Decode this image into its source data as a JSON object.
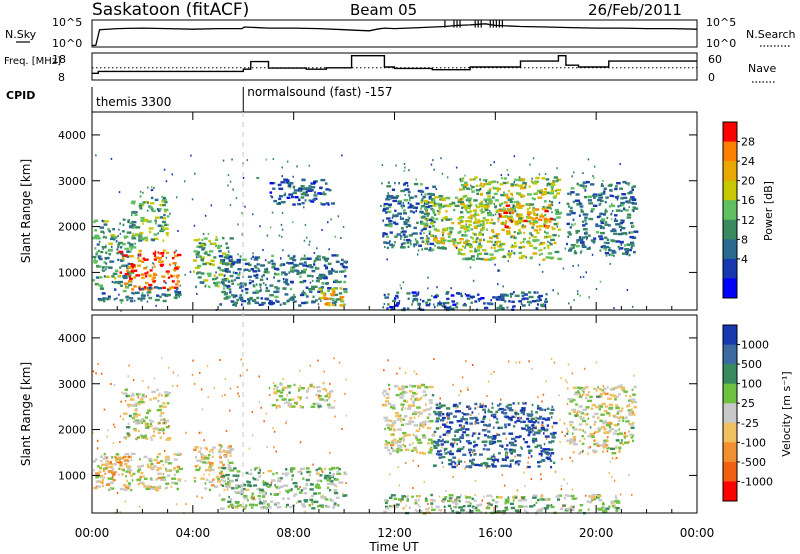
{
  "header": {
    "station": "Saskatoon (fitACF)",
    "beam": "Beam 05",
    "date": "26/Feb/2011"
  },
  "chart_data": [
    {
      "type": "line",
      "panel": "nsky",
      "ylabel": "N.Sky",
      "right_label": "N.Search",
      "y_tick_labels": [
        "10^5",
        "10^0"
      ],
      "right_tick_labels": [
        "10^5",
        "10^0"
      ],
      "y_scale": "log",
      "xlim": [
        0,
        24
      ],
      "ylim": [
        0,
        5
      ],
      "series": [
        {
          "style": "solid",
          "x": [
            0,
            0.15,
            0.3,
            1,
            2,
            3,
            4,
            5,
            5.95,
            6.05,
            7,
            8,
            9,
            10,
            10.5,
            11,
            11.3,
            11.6,
            12,
            13,
            14,
            14.5,
            15,
            15.3,
            15.6,
            16,
            17,
            18,
            19,
            20,
            21,
            22,
            23,
            24
          ],
          "y": [
            0.3,
            0.3,
            3.2,
            3.4,
            3.5,
            3.4,
            3.3,
            3.4,
            3.4,
            3.7,
            3.5,
            3.5,
            3.4,
            3.2,
            3.1,
            3.0,
            3.3,
            3.5,
            3.4,
            3.6,
            3.8,
            4.0,
            4.1,
            4.2,
            4.3,
            4.0,
            3.8,
            3.7,
            3.6,
            3.5,
            3.5,
            3.4,
            3.4,
            3.3
          ]
        },
        {
          "style": "dotted",
          "x": [
            0,
            24
          ],
          "y": [
            0,
            0
          ]
        }
      ]
    },
    {
      "type": "line",
      "panel": "freq",
      "ylabel": "Freq. [MHz]",
      "y_tick_labels": [
        "18",
        "8"
      ],
      "right_label": "Nave",
      "right_tick_labels": [
        "60",
        "0"
      ],
      "xlim": [
        0,
        24
      ],
      "ylim": [
        8,
        18
      ],
      "series": [
        {
          "name": "Freq",
          "style": "solid",
          "x": [
            0,
            0.25,
            0.25,
            6.0,
            6.0,
            6.3,
            6.3,
            7.0,
            7.0,
            8.5,
            8.5,
            9.3,
            9.3,
            10.3,
            10.3,
            11.6,
            11.6,
            12.0,
            12.0,
            13.5,
            13.5,
            15.0,
            15.0,
            17.0,
            17.0,
            18.5,
            18.5,
            18.8,
            18.8,
            19.3,
            19.3,
            20.5,
            20.5,
            21.5,
            21.5,
            24.0
          ],
          "y": [
            10.5,
            10.5,
            11.2,
            11.2,
            12.0,
            12.0,
            14.8,
            14.8,
            12.4,
            12.4,
            12.0,
            12.0,
            12.5,
            12.5,
            17.0,
            17.0,
            12.8,
            12.8,
            12.3,
            12.3,
            11.8,
            11.8,
            12.8,
            12.8,
            15.0,
            15.0,
            17.0,
            17.0,
            13.5,
            13.5,
            12.8,
            12.8,
            15.0,
            15.0,
            15.0,
            15.0
          ]
        },
        {
          "name": "Nave",
          "style": "dotted",
          "x": [
            0,
            24
          ],
          "y": [
            12.5,
            12.5
          ]
        }
      ]
    },
    {
      "type": "table",
      "panel": "cpid",
      "label": "CPID",
      "segments": [
        {
          "start": 0,
          "text": "themis 3300"
        },
        {
          "start": 6,
          "text": "normalsound (fast) -157"
        }
      ]
    },
    {
      "type": "heatmap",
      "panel": "power",
      "ylabel": "Slant Range [km]",
      "colorbar_label": "Power [dB]",
      "xlim": [
        0,
        24
      ],
      "ylim": [
        180,
        4500
      ],
      "y_ticks": [
        1000,
        2000,
        3000,
        4000
      ],
      "colorbar_ticks": [
        "28",
        "24",
        "20",
        "16",
        "12",
        "8",
        "4"
      ],
      "colorbar_colors": [
        "#ff0000",
        "#ff8000",
        "#e8a800",
        "#c8c800",
        "#60c060",
        "#3a8a60",
        "#2a6a90",
        "#1838b0",
        "#0000ff"
      ],
      "regions": [
        {
          "t0": 0.0,
          "t1": 1.6,
          "r0": 700,
          "r1": 2200,
          "level": 0.4
        },
        {
          "t0": 1.0,
          "t1": 3.4,
          "r0": 650,
          "r1": 1500,
          "level": 0.85
        },
        {
          "t0": 1.5,
          "t1": 3.0,
          "r0": 1700,
          "r1": 2700,
          "level": 0.45
        },
        {
          "t0": 0.2,
          "t1": 3.5,
          "r0": 400,
          "r1": 700,
          "level": 0.3
        },
        {
          "t0": 4.0,
          "t1": 5.5,
          "r0": 700,
          "r1": 1800,
          "level": 0.45
        },
        {
          "t0": 5.0,
          "t1": 10.0,
          "r0": 300,
          "r1": 1400,
          "level": 0.3
        },
        {
          "t0": 9.0,
          "t1": 10.0,
          "r0": 300,
          "r1": 700,
          "level": 0.7
        },
        {
          "t0": 7.0,
          "t1": 9.5,
          "r0": 2500,
          "r1": 3050,
          "level": 0.25
        },
        {
          "t0": 11.5,
          "t1": 13.5,
          "r0": 1500,
          "r1": 3000,
          "level": 0.3
        },
        {
          "t0": 13.0,
          "t1": 15.5,
          "r0": 1500,
          "r1": 2700,
          "level": 0.55
        },
        {
          "t0": 14.5,
          "t1": 18.5,
          "r0": 1300,
          "r1": 3100,
          "level": 0.55
        },
        {
          "t0": 16.0,
          "t1": 18.3,
          "r0": 2000,
          "r1": 2500,
          "level": 0.75
        },
        {
          "t0": 18.8,
          "t1": 21.5,
          "r0": 1400,
          "r1": 3000,
          "level": 0.3
        },
        {
          "t0": 11.5,
          "t1": 18.0,
          "r0": 200,
          "r1": 600,
          "level": 0.25
        }
      ]
    },
    {
      "type": "heatmap",
      "panel": "velocity",
      "ylabel": "Slant Range [km]",
      "colorbar_label": "Velocity [m s⁻¹]",
      "xlim": [
        0,
        24
      ],
      "ylim": [
        180,
        4500
      ],
      "y_ticks": [
        1000,
        2000,
        3000,
        4000
      ],
      "colorbar_ticks": [
        "1000",
        "500",
        "100",
        "25",
        "-25",
        "-100",
        "-500",
        "-1000"
      ],
      "colorbar_colors": [
        "#1838b0",
        "#3a6aa0",
        "#3a8a60",
        "#70c040",
        "#c8c8c8",
        "#f0c060",
        "#f09030",
        "#f06010",
        "#ff0000"
      ],
      "regions": [
        {
          "t0": 0.0,
          "t1": 3.5,
          "r0": 700,
          "r1": 1500,
          "level": 0.48
        },
        {
          "t0": 0.3,
          "t1": 1.5,
          "r0": 1000,
          "r1": 1500,
          "level": 0.35
        },
        {
          "t0": 1.2,
          "t1": 3.0,
          "r0": 1800,
          "r1": 2900,
          "level": 0.5
        },
        {
          "t0": 4.0,
          "t1": 5.5,
          "r0": 700,
          "r1": 1700,
          "level": 0.42
        },
        {
          "t0": 5.0,
          "t1": 10.0,
          "r0": 300,
          "r1": 1200,
          "level": 0.6
        },
        {
          "t0": 7.0,
          "t1": 9.5,
          "r0": 2500,
          "r1": 3050,
          "level": 0.5
        },
        {
          "t0": 11.5,
          "t1": 13.5,
          "r0": 1500,
          "r1": 3000,
          "level": 0.5
        },
        {
          "t0": 13.5,
          "t1": 18.3,
          "r0": 1200,
          "r1": 2600,
          "level": 0.85
        },
        {
          "t0": 18.8,
          "t1": 21.5,
          "r0": 1500,
          "r1": 3000,
          "level": 0.5
        },
        {
          "t0": 11.5,
          "t1": 21.0,
          "r0": 200,
          "r1": 600,
          "level": 0.6
        }
      ]
    }
  ],
  "x_axis": {
    "label": "Time UT",
    "tick_labels": [
      "00:00",
      "04:00",
      "08:00",
      "12:00",
      "16:00",
      "20:00",
      "00:00"
    ]
  }
}
